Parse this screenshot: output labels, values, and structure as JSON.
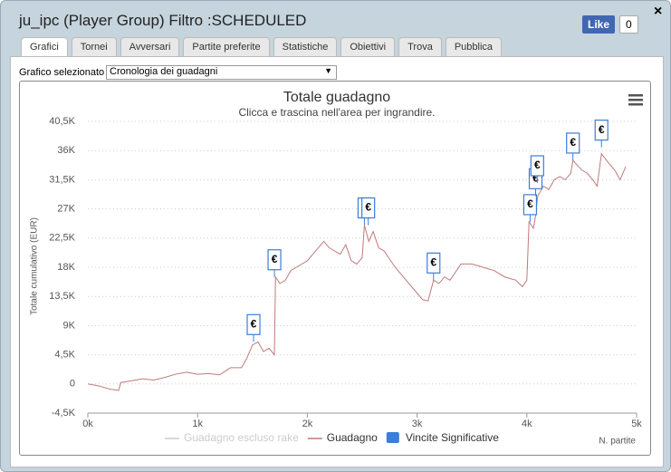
{
  "header": {
    "title": "ju_ipc (Player Group) Filtro :SCHEDULED",
    "like": "Like",
    "like_count": "0",
    "close": "×"
  },
  "tabs": [
    "Grafici",
    "Tornei",
    "Avversari",
    "Partite preferite",
    "Statistiche",
    "Obiettivi",
    "Trova",
    "Pubblica"
  ],
  "selector": {
    "label": "Grafico selezionato",
    "value": "Cronologia dei guadagni"
  },
  "chart_data": {
    "type": "line",
    "title": "Totale guadagno",
    "subtitle": "Clicca e trascina nell'area per ingrandire.",
    "y_label": "Totale cumulativo (EUR)",
    "x_label": "N. partite",
    "grid": true,
    "xlim": [
      0,
      5000
    ],
    "xticks": [
      {
        "value": 0,
        "label": "0k"
      },
      {
        "value": 1000,
        "label": "1k"
      },
      {
        "value": 2000,
        "label": "2k"
      },
      {
        "value": 3000,
        "label": "3k"
      },
      {
        "value": 4000,
        "label": "4k"
      },
      {
        "value": 5000,
        "label": "5k"
      }
    ],
    "ylim": [
      -4500,
      40500
    ],
    "yticks": [
      {
        "value": -4500,
        "label": "-4,5K"
      },
      0,
      {
        "value": 4500,
        "label": "4,5K"
      },
      {
        "value": 9000,
        "label": "9K"
      },
      {
        "value": 13500,
        "label": "13,5K"
      },
      {
        "value": 18000,
        "label": "18K"
      },
      {
        "value": 22500,
        "label": "22,5K"
      },
      {
        "value": 27000,
        "label": "27K"
      },
      {
        "value": 31500,
        "label": "31,5K"
      },
      {
        "value": 36000,
        "label": "36K"
      },
      {
        "value": 40500,
        "label": "40,5K"
      }
    ],
    "flag_label": "€",
    "series": [
      {
        "name": "Guadagno escluso rake",
        "color": "#cccccc",
        "hidden": true
      },
      {
        "name": "Guadagno",
        "color": "#c07a7a",
        "x": [
          0,
          100,
          200,
          280,
          300,
          400,
          500,
          600,
          700,
          800,
          900,
          1000,
          1100,
          1200,
          1300,
          1400,
          1450,
          1500,
          1550,
          1600,
          1650,
          1700,
          1710,
          1750,
          1800,
          1850,
          1900,
          2000,
          2100,
          2150,
          2200,
          2300,
          2350,
          2400,
          2450,
          2500,
          2520,
          2560,
          2600,
          2650,
          2700,
          2800,
          2900,
          3000,
          3050,
          3100,
          3150,
          3200,
          3250,
          3300,
          3400,
          3500,
          3600,
          3700,
          3800,
          3900,
          3960,
          4000,
          4020,
          4060,
          4080,
          4100,
          4150,
          4200,
          4250,
          4300,
          4350,
          4400,
          4420,
          4500,
          4550,
          4600,
          4640,
          4680,
          4750,
          4800,
          4850,
          4900
        ],
        "values": [
          0,
          -300,
          -800,
          -1000,
          200,
          500,
          800,
          600,
          1000,
          1500,
          1800,
          1500,
          1600,
          1400,
          2500,
          2500,
          4000,
          6000,
          6500,
          5000,
          5500,
          4500,
          16500,
          15500,
          16000,
          17500,
          18000,
          19000,
          21000,
          22000,
          21000,
          20000,
          21500,
          19000,
          18500,
          19500,
          24500,
          22000,
          23500,
          21000,
          20500,
          18000,
          16000,
          14000,
          13000,
          12800,
          16000,
          15500,
          16500,
          16000,
          18500,
          18500,
          18000,
          17500,
          16500,
          16000,
          15000,
          16000,
          25000,
          24000,
          26000,
          29000,
          30500,
          30000,
          31500,
          32000,
          31500,
          32500,
          34500,
          33000,
          32500,
          31500,
          30500,
          35500,
          34000,
          33000,
          31500,
          33500
        ]
      },
      {
        "name": "Vincite Significative",
        "color": "#3b7dd8",
        "x": [
          1510,
          1700,
          2520,
          2555,
          3150,
          4030,
          4080,
          4095,
          4420,
          4680
        ],
        "values": [
          6500,
          16500,
          24500,
          24500,
          16000,
          25000,
          29000,
          31000,
          34500,
          36500
        ]
      }
    ]
  }
}
